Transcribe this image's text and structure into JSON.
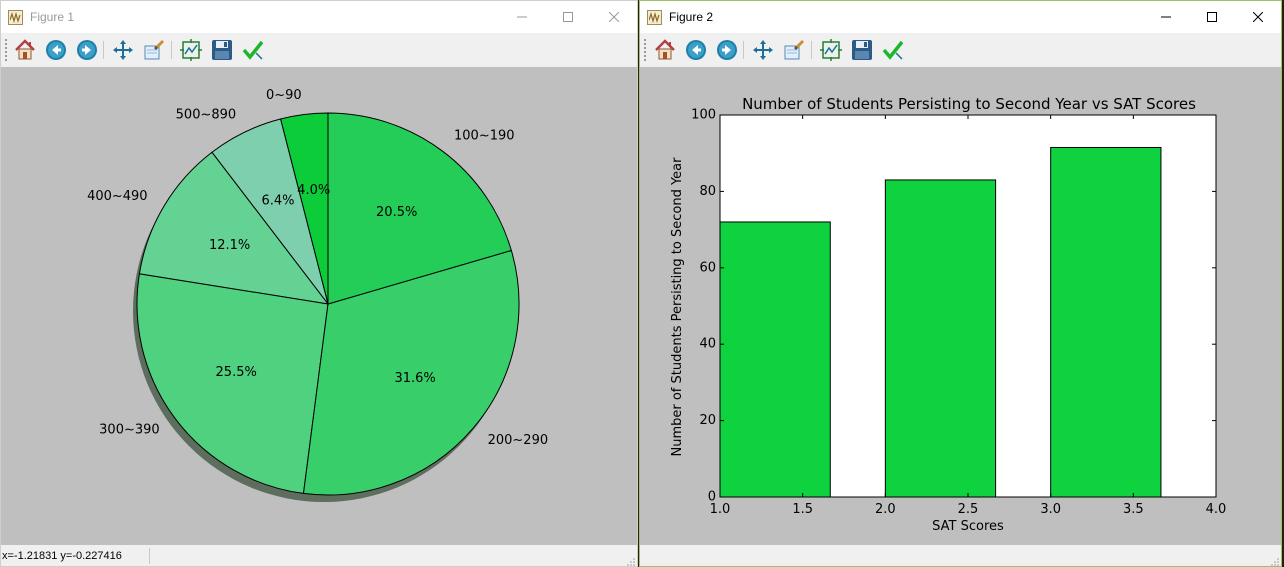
{
  "windows": [
    {
      "title": "Figure 1",
      "status": "x=-1.21831    y=-0.227416",
      "toolbar": [
        "home-icon",
        "back-icon",
        "forward-icon",
        "pan-icon",
        "zoom-icon",
        "subplots-icon",
        "save-icon",
        "edit-icon"
      ]
    },
    {
      "title": "Figure 2",
      "status": "",
      "toolbar": [
        "home-icon",
        "back-icon",
        "forward-icon",
        "pan-icon",
        "zoom-icon",
        "subplots-icon",
        "save-icon",
        "edit-icon"
      ]
    }
  ],
  "chart_data": [
    {
      "type": "pie",
      "slices": [
        {
          "label": "0~90",
          "pct": 4.0,
          "pct_text": "4.0%",
          "color": "#0ccc3a"
        },
        {
          "label": "500~890",
          "pct": 6.4,
          "pct_text": "6.4%",
          "color": "#7ecfad"
        },
        {
          "label": "400~490",
          "pct": 12.1,
          "pct_text": "12.1%",
          "color": "#63d293"
        },
        {
          "label": "300~390",
          "pct": 25.5,
          "pct_text": "25.5%",
          "color": "#4fd17f"
        },
        {
          "label": "200~290",
          "pct": 31.6,
          "pct_text": "31.6%",
          "color": "#38cf6a"
        },
        {
          "label": "100~190",
          "pct": 20.5,
          "pct_text": "20.5%",
          "color": "#24cd58"
        }
      ],
      "start_angle_deg": 90,
      "direction": "counterclockwise",
      "shadow": true
    },
    {
      "type": "bar",
      "title": "Number of Students Persisting to Second Year vs SAT Scores",
      "xlabel": "SAT Scores",
      "ylabel": "Number of Students Persisting to Second Year",
      "bars": [
        {
          "x": 1.0,
          "width": 0.667,
          "value": 72
        },
        {
          "x": 2.0,
          "width": 0.667,
          "value": 83
        },
        {
          "x": 3.0,
          "width": 0.667,
          "value": 91.5
        }
      ],
      "bar_color": "#0ed33f",
      "xlim": [
        1.0,
        4.0
      ],
      "ylim": [
        0,
        100
      ],
      "xticks": [
        "1.0",
        "1.5",
        "2.0",
        "2.5",
        "3.0",
        "3.5",
        "4.0"
      ],
      "yticks": [
        "0",
        "20",
        "40",
        "60",
        "80",
        "100"
      ]
    }
  ]
}
